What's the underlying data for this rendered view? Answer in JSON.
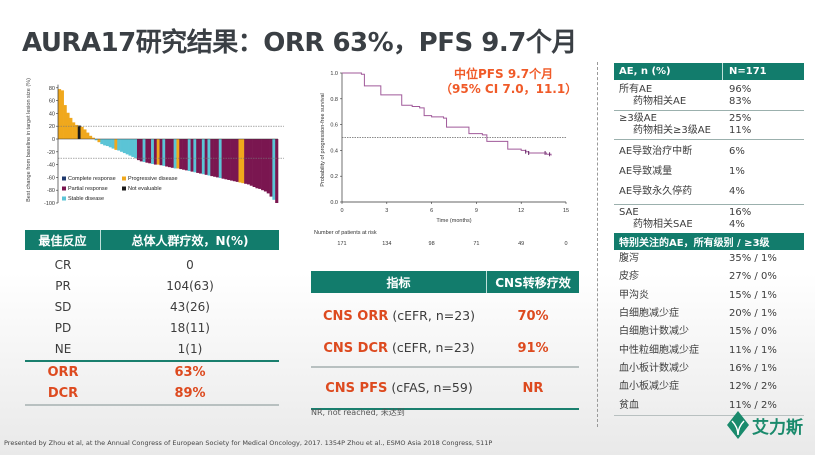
{
  "title": "AURA17研究结果：ORR 63%，PFS 9.7个月",
  "colors": {
    "teal": "#127c6c",
    "accent": "#dd4a1f",
    "pd": "#f0a81c",
    "pr": "#7a1650",
    "sd": "#5bc4d6",
    "cr": "#1f3a6e",
    "ne": "#1b1b1b",
    "km": "#a05a9a"
  },
  "chart_data": [
    {
      "type": "bar",
      "name": "waterfall",
      "ylabel": "Best change from baseline in target lesion size (%)",
      "ylim": [
        -100,
        85
      ],
      "yticks": [
        80,
        60,
        40,
        20,
        0,
        -20,
        -40,
        -60,
        -80,
        -100
      ],
      "reference_lines": [
        20,
        -30
      ],
      "legend": [
        {
          "label": "Complete response",
          "type": "CR"
        },
        {
          "label": "Progressive disease",
          "type": "PD"
        },
        {
          "label": "Partial response",
          "type": "PR"
        },
        {
          "label": "Not evaluable",
          "type": "NE"
        },
        {
          "label": "Stable disease",
          "type": "SD"
        }
      ],
      "bars": [
        [
          78,
          "PD"
        ],
        [
          76,
          "PD"
        ],
        [
          53,
          "PD"
        ],
        [
          41,
          "PD"
        ],
        [
          33,
          "PD"
        ],
        [
          26,
          "PD"
        ],
        [
          22,
          "PD"
        ],
        [
          21,
          "NE"
        ],
        [
          19,
          "PD"
        ],
        [
          15,
          "PD"
        ],
        [
          10,
          "PD"
        ],
        [
          5,
          "PD"
        ],
        [
          2,
          "PD"
        ],
        [
          -2,
          "SD"
        ],
        [
          -5,
          "PD"
        ],
        [
          -8,
          "SD"
        ],
        [
          -10,
          "SD"
        ],
        [
          -11,
          "SD"
        ],
        [
          -13,
          "SD"
        ],
        [
          -15,
          "SD"
        ],
        [
          -17,
          "PD"
        ],
        [
          -18,
          "SD"
        ],
        [
          -20,
          "SD"
        ],
        [
          -22,
          "SD"
        ],
        [
          -24,
          "SD"
        ],
        [
          -26,
          "SD"
        ],
        [
          -28,
          "SD"
        ],
        [
          -30,
          "SD"
        ],
        [
          -33,
          "PR"
        ],
        [
          -35,
          "PR"
        ],
        [
          -36,
          "SD"
        ],
        [
          -37,
          "PR"
        ],
        [
          -38,
          "PR"
        ],
        [
          -39,
          "SD"
        ],
        [
          -40,
          "PR"
        ],
        [
          -40,
          "PD"
        ],
        [
          -41,
          "PR"
        ],
        [
          -42,
          "SD"
        ],
        [
          -43,
          "PR"
        ],
        [
          -44,
          "PR"
        ],
        [
          -45,
          "PR"
        ],
        [
          -46,
          "SD"
        ],
        [
          -46,
          "PD"
        ],
        [
          -47,
          "PR"
        ],
        [
          -48,
          "PR"
        ],
        [
          -49,
          "PR"
        ],
        [
          -50,
          "SD"
        ],
        [
          -51,
          "PR"
        ],
        [
          -52,
          "SD"
        ],
        [
          -53,
          "PR"
        ],
        [
          -54,
          "PR"
        ],
        [
          -55,
          "SD"
        ],
        [
          -56,
          "PR"
        ],
        [
          -57,
          "SD"
        ],
        [
          -58,
          "PR"
        ],
        [
          -59,
          "PR"
        ],
        [
          -60,
          "PR"
        ],
        [
          -61,
          "SD"
        ],
        [
          -62,
          "PR"
        ],
        [
          -63,
          "PR"
        ],
        [
          -64,
          "PR"
        ],
        [
          -65,
          "PR"
        ],
        [
          -66,
          "PR"
        ],
        [
          -67,
          "PR"
        ],
        [
          -68,
          "PD"
        ],
        [
          -69,
          "PD"
        ],
        [
          -70,
          "PR"
        ],
        [
          -71,
          "PR"
        ],
        [
          -73,
          "PR"
        ],
        [
          -75,
          "PR"
        ],
        [
          -77,
          "PR"
        ],
        [
          -78,
          "PR"
        ],
        [
          -80,
          "PR"
        ],
        [
          -82,
          "PR"
        ],
        [
          -85,
          "PR"
        ],
        [
          -90,
          "PR"
        ],
        [
          -95,
          "SD"
        ],
        [
          -100,
          "PR"
        ]
      ]
    },
    {
      "type": "line",
      "name": "kaplan-meier",
      "xlabel": "Time (months)",
      "ylabel": "Probability of progression-free survival",
      "xlim": [
        0,
        15
      ],
      "ylim": [
        0,
        1
      ],
      "xticks": [
        0,
        3,
        6,
        9,
        12,
        15
      ],
      "yticks": [
        "0.0",
        "0.2",
        "0.4",
        "0.6",
        "0.8",
        "1.0"
      ],
      "median_line": 0.5,
      "x": [
        0,
        1.3,
        1.5,
        2.5,
        2.6,
        3.5,
        4.0,
        4.7,
        5.2,
        5.5,
        6.0,
        6.8,
        7.0,
        8.2,
        8.5,
        9.0,
        9.4,
        9.7,
        11.0,
        11.1,
        12.0,
        12.3,
        12.5,
        13.5,
        13.7,
        14.0
      ],
      "y": [
        1.0,
        0.99,
        0.9,
        0.9,
        0.83,
        0.83,
        0.75,
        0.74,
        0.73,
        0.67,
        0.66,
        0.65,
        0.58,
        0.58,
        0.53,
        0.53,
        0.52,
        0.47,
        0.47,
        0.41,
        0.4,
        0.39,
        0.38,
        0.38,
        0.37,
        0.36
      ],
      "risk_label": "Number of patients at risk",
      "at_risk": [
        "171",
        "134",
        "98",
        "71",
        "49",
        "0"
      ]
    }
  ],
  "km_title": {
    "line1": "中位PFS 9.7个月",
    "line2": "（95% CI 7.0，11.1）"
  },
  "response_table": {
    "headers": [
      "最佳反应",
      "总体人群疗效，N(%)"
    ],
    "rows": [
      [
        "CR",
        "0"
      ],
      [
        "PR",
        "104(63)"
      ],
      [
        "SD",
        "43(26)"
      ],
      [
        "PD",
        "18(11)"
      ],
      [
        "NE",
        "1(1)"
      ]
    ],
    "summary": [
      [
        "ORR",
        "63%"
      ],
      [
        "DCR",
        "89%"
      ]
    ]
  },
  "cns_table": {
    "headers": [
      "指标",
      "CNS转移疗效"
    ],
    "rows": [
      {
        "metric": "CNS ORR",
        "pop": " (cEFR, n=23)",
        "value": "70%"
      },
      {
        "metric": "CNS DCR",
        "pop": " (cEFR, n=23)",
        "value": "91%"
      },
      {
        "metric": "CNS PFS",
        "pop": " (cFAS, n=59)",
        "value": "NR"
      }
    ],
    "footnote": "NR, not reached, 未达到"
  },
  "ae_table": {
    "headers": [
      "AE, n (%)",
      "N=171"
    ],
    "groups": [
      [
        [
          "所有AE",
          "96%",
          false
        ],
        [
          "药物相关AE",
          "83%",
          true
        ]
      ],
      [
        [
          "≥3级AE",
          "25%",
          false
        ],
        [
          "药物相关≥3级AE",
          "11%",
          true
        ]
      ],
      [
        [
          "AE导致治疗中断",
          "6%",
          false
        ]
      ],
      [
        [
          "AE导致减量",
          "1%",
          false
        ]
      ],
      [
        [
          "AE导致永久停药",
          "4%",
          false
        ]
      ],
      [
        [
          "SAE",
          "16%",
          false
        ],
        [
          "药物相关SAE",
          "4%",
          true
        ]
      ]
    ],
    "special_header": "特别关注的AE，所有级别 / ≥3级",
    "special_rows": [
      [
        "腹泻",
        "35% / 1%"
      ],
      [
        "皮疹",
        "27% / 0%"
      ],
      [
        "甲沟炎",
        "15% / 1%"
      ],
      [
        "白细胞减少症",
        "20% / 1%"
      ],
      [
        "白细胞计数减少",
        "15% / 0%"
      ],
      [
        "中性粒细胞减少症",
        "11% / 1%"
      ],
      [
        "血小板计数减少",
        "16% / 1%"
      ],
      [
        "血小板减少症",
        "12% / 2%"
      ],
      [
        "贫血",
        "11% / 2%"
      ]
    ]
  },
  "logo_text": "艾力斯",
  "footer": "Presented by Zhou et al, at the Annual Congress of European Society for Medical Oncology, 2017. 1354P Zhou et al., ESMO Asia 2018 Congress, 511P"
}
